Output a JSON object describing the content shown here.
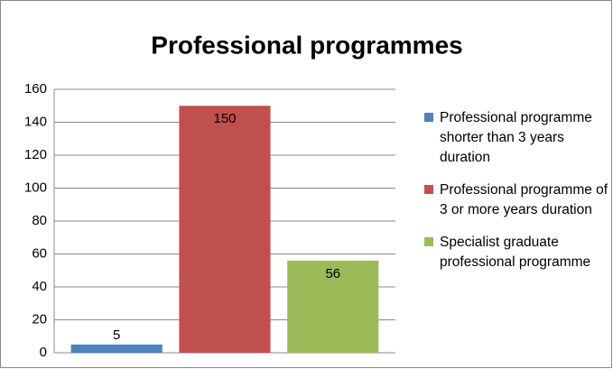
{
  "chart_data": {
    "type": "bar",
    "title": "Professional programmes",
    "categories": [
      null
    ],
    "series": [
      {
        "name": "Professional programme shorter than 3 years duration",
        "color": "#4f81bd",
        "values": [
          5
        ]
      },
      {
        "name": "Professional programme of 3 or more years duration",
        "color": "#c0504d",
        "values": [
          150
        ]
      },
      {
        "name": "Specialist graduate professional programme",
        "color": "#9bbb59",
        "values": [
          56
        ]
      }
    ],
    "ylim": [
      0,
      160
    ],
    "yticks": [
      0,
      20,
      40,
      60,
      80,
      100,
      120,
      140,
      160
    ],
    "grid": true,
    "legend": "right"
  }
}
